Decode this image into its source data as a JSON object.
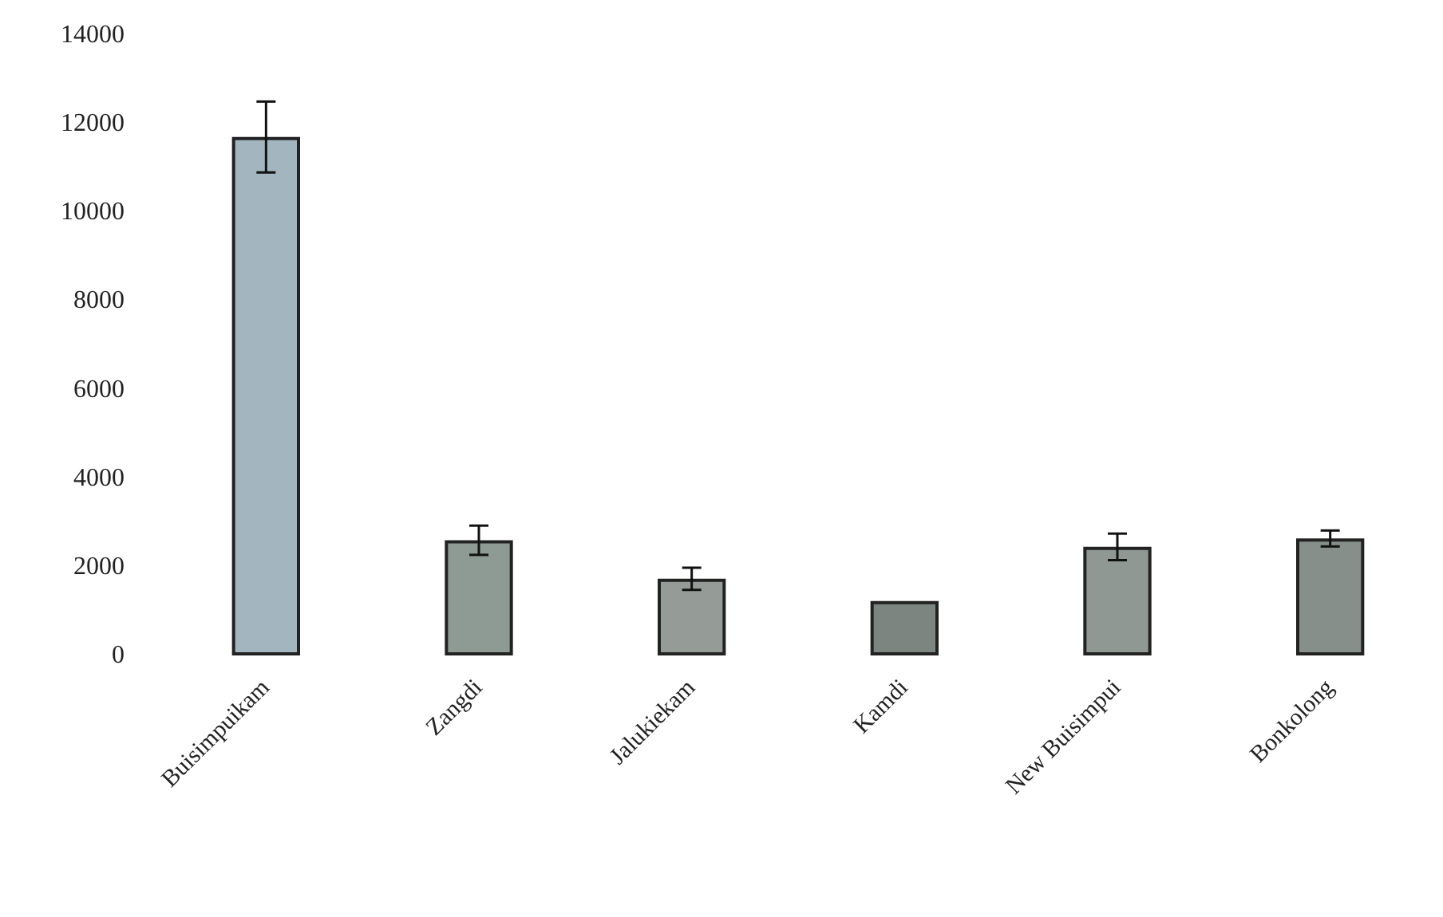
{
  "chart_data": {
    "type": "bar",
    "categories": [
      "Buisimpuikam",
      "Zangdi",
      "Jalukiekam",
      "Kamdi",
      "New Buisimpui",
      "Bonkolong"
    ],
    "values": [
      11700,
      2600,
      1730,
      1230,
      2450,
      2640
    ],
    "errors": [
      800,
      330,
      250,
      null,
      300,
      180
    ],
    "colors": [
      "#a3b6bf",
      "#8e9a94",
      "#959c97",
      "#7d8581",
      "#8f9893",
      "#868f8a"
    ],
    "ylim": [
      0,
      14000
    ],
    "yticks": [
      0,
      2000,
      4000,
      6000,
      8000,
      10000,
      12000,
      14000
    ],
    "grid": false
  }
}
